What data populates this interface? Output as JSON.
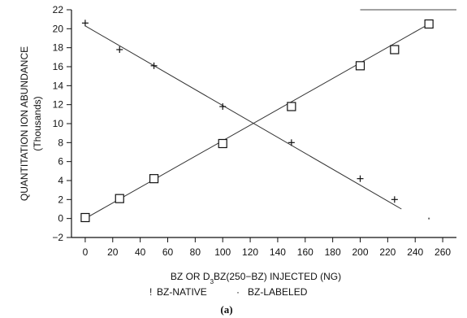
{
  "chart_data": {
    "type": "scatter",
    "xlabel": "BZ OR D3BZ(250-BZ) INJECTED (NG)",
    "xlabel_parts": {
      "pre": "BZ OR D",
      "sub": "3",
      "post": "BZ(250−BZ) INJECTED (NG)"
    },
    "ylabel": "QUANTITATION ION ABUNDANCE",
    "ylabel_unit": "(Thousands)",
    "caption": "(a)",
    "xlim": [
      -10,
      270
    ],
    "ylim": [
      -2,
      22
    ],
    "x_ticks": [
      0,
      20,
      40,
      60,
      80,
      100,
      120,
      140,
      160,
      180,
      200,
      220,
      240,
      260
    ],
    "y_ticks": [
      -2,
      0,
      2,
      4,
      6,
      8,
      10,
      12,
      14,
      16,
      18,
      20,
      22
    ],
    "grid": false,
    "legend_position": "bottom-center",
    "series": [
      {
        "name": "BZ-NATIVE",
        "marker": "plus",
        "legend_glyph": "!",
        "x": [
          0,
          25,
          50,
          100,
          150,
          200,
          225,
          250
        ],
        "y": [
          20.6,
          17.8,
          16.1,
          11.8,
          8.0,
          4.2,
          2.0,
          0.0
        ],
        "fit": {
          "x": [
            0,
            230
          ],
          "y": [
            20.3,
            1.0
          ]
        }
      },
      {
        "name": "BZ-LABELED",
        "marker": "square",
        "legend_glyph": "·",
        "x": [
          0,
          25,
          50,
          100,
          150,
          200,
          225,
          250
        ],
        "y": [
          0.1,
          2.1,
          4.2,
          7.9,
          11.8,
          16.1,
          17.8,
          20.5
        ],
        "fit": {
          "x": [
            0,
            250
          ],
          "y": [
            0.0,
            20.5
          ]
        }
      }
    ]
  }
}
